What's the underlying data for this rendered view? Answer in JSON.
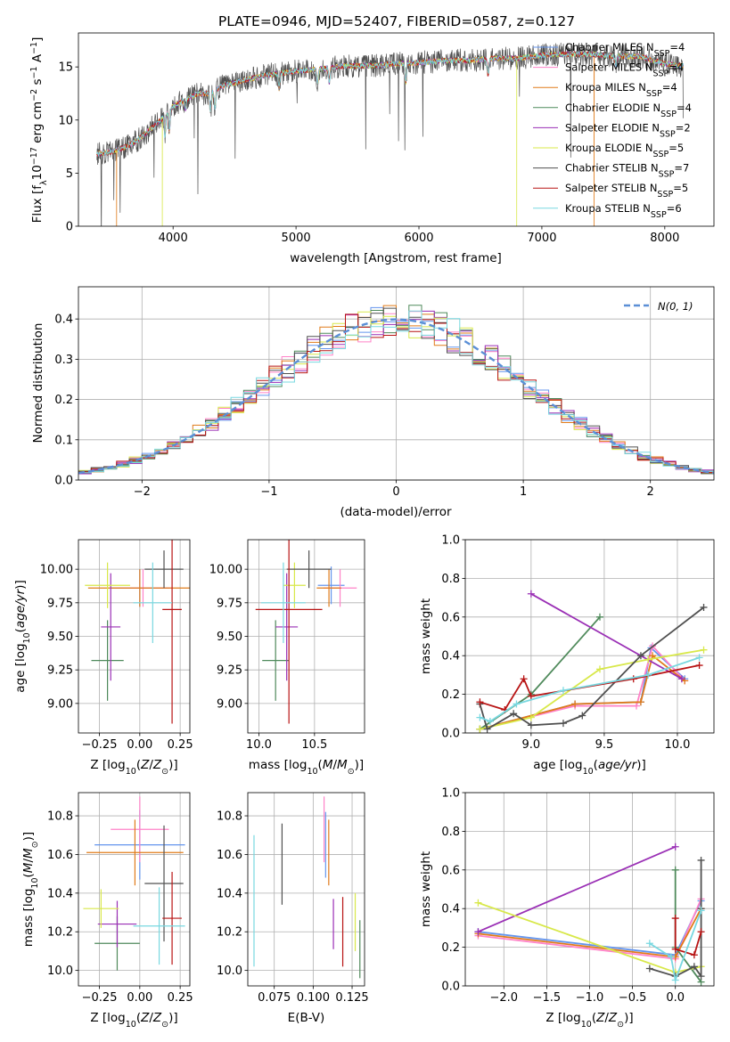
{
  "figure": {
    "title": "PLATE=0946, MJD=52407, FIBERID=0587, z=0.127"
  },
  "models": [
    {
      "name": "Chabrier MILES",
      "nssp": "4",
      "color": "#6495ed"
    },
    {
      "name": "Salpeter MILES",
      "nssp": "4",
      "color": "#ff82c8"
    },
    {
      "name": "Kroupa MILES",
      "nssp": "4",
      "color": "#e07b1a"
    },
    {
      "name": "Chabrier ELODIE",
      "nssp": "4",
      "color": "#4f8a5b"
    },
    {
      "name": "Salpeter ELODIE",
      "nssp": "2",
      "color": "#9a2fb5"
    },
    {
      "name": "Kroupa ELODIE",
      "nssp": "5",
      "color": "#d8e84a"
    },
    {
      "name": "Chabrier STELIB",
      "nssp": "7",
      "color": "#505050"
    },
    {
      "name": "Salpeter STELIB",
      "nssp": "5",
      "color": "#b81414"
    },
    {
      "name": "Kroupa STELIB",
      "nssp": "6",
      "color": "#78d8e0"
    }
  ],
  "legend_labels": {
    "nssp_prefix": "N",
    "nssp_sub": "SSP",
    "nssp_eq": "=",
    "normal": "N(0, 1)"
  },
  "chart_data": [
    {
      "id": "spectrum",
      "type": "line",
      "title": "PLATE=0946, MJD=52407, FIBERID=0587, z=0.127",
      "xlabel": "wavelength [Angstrom, rest frame]",
      "ylabel": "Flux [f_λ 10^-17 erg cm^-2 s^-1 A^-1]",
      "xlim": [
        3230,
        8400
      ],
      "ylim": [
        0,
        18.2
      ],
      "xticks": [
        4000,
        5000,
        6000,
        7000,
        8000
      ],
      "yticks": [
        0,
        5,
        10,
        15
      ],
      "grid": false,
      "legend": "right",
      "continuum": {
        "x": [
          3380,
          3500,
          3600,
          3700,
          3800,
          3900,
          4000,
          4100,
          4200,
          4300,
          4400,
          4500,
          4600,
          4800,
          5000,
          5200,
          5400,
          5600,
          5800,
          6000,
          6200,
          6400,
          6600,
          6800,
          7000,
          7200,
          7400,
          7600,
          7800,
          8000,
          8150
        ],
        "y": [
          6.8,
          7.0,
          7.4,
          8.0,
          9.0,
          10.0,
          11.3,
          11.9,
          12.5,
          12.5,
          13.2,
          13.5,
          13.8,
          14.3,
          14.6,
          14.8,
          15.1,
          15.1,
          15.3,
          15.4,
          15.6,
          15.6,
          15.8,
          15.8,
          16.1,
          16.2,
          16.2,
          16.0,
          16.0,
          15.3,
          15.1
        ]
      },
      "absorption": [
        {
          "x": 3934,
          "y": 8.5
        },
        {
          "x": 3969,
          "y": 8.9
        },
        {
          "x": 4102,
          "y": 11.0
        },
        {
          "x": 4305,
          "y": 10.8
        },
        {
          "x": 4341,
          "y": 11.2
        },
        {
          "x": 4861,
          "y": 12.9
        },
        {
          "x": 5175,
          "y": 13.4
        },
        {
          "x": 5270,
          "y": 13.6
        },
        {
          "x": 5892,
          "y": 13.5
        },
        {
          "x": 6563,
          "y": 14.2
        },
        {
          "x": 7600,
          "y": 15.1
        }
      ],
      "noisy_series": "Chabrier STELIB",
      "edges": [
        {
          "series": "Kroupa MILES",
          "x": [
            3540,
            7425
          ]
        },
        {
          "series": "Kroupa ELODIE",
          "x": [
            3912,
            6795
          ]
        }
      ]
    },
    {
      "id": "residuals",
      "type": "line",
      "xlabel": "(data-model)/error",
      "ylabel": "Normed distribution",
      "xlim": [
        -2.5,
        2.5
      ],
      "ylim": [
        0,
        0.48
      ],
      "xticks": [
        -2,
        -1,
        0,
        1,
        2
      ],
      "yticks": [
        0.0,
        0.1,
        0.2,
        0.3,
        0.4
      ],
      "grid": true,
      "legend": "top-right",
      "bin_width": 0.1,
      "reference_curve": "N(0, 1)"
    },
    {
      "id": "age-vs-Z",
      "type": "scatter",
      "xlabel": "Z [log10(Z/Z⊙)]",
      "ylabel": "age [log10(age/yr)]",
      "xlim": [
        -0.38,
        0.31
      ],
      "ylim": [
        8.78,
        10.22
      ],
      "xticks": [
        -0.25,
        0.0,
        0.25
      ],
      "yticks": [
        9.0,
        9.25,
        9.5,
        9.75,
        10.0
      ],
      "grid": true,
      "points": [
        {
          "series": "Chabrier MILES",
          "x": 0.0,
          "xerr": 0.18,
          "y": 9.86,
          "yerr": 0.14
        },
        {
          "series": "Salpeter MILES",
          "x": 0.02,
          "xerr": 0.18,
          "y": 9.86,
          "yerr": 0.14
        },
        {
          "series": "Kroupa MILES",
          "x": 0.0,
          "xerr": 0.32,
          "y": 9.86,
          "yerr": 0.14
        },
        {
          "series": "Chabrier ELODIE",
          "x": -0.2,
          "xerr": 0.1,
          "y": 9.32,
          "yerr": 0.3
        },
        {
          "series": "Salpeter ELODIE",
          "x": -0.18,
          "xerr": 0.06,
          "y": 9.57,
          "yerr": 0.4
        },
        {
          "series": "Kroupa ELODIE",
          "x": -0.2,
          "xerr": 0.14,
          "y": 9.88,
          "yerr": 0.17
        },
        {
          "series": "Chabrier STELIB",
          "x": 0.15,
          "xerr": 0.12,
          "y": 10.0,
          "yerr": 0.14
        },
        {
          "series": "Salpeter STELIB",
          "x": 0.2,
          "xerr": 0.06,
          "y": 9.7,
          "yerr": 0.85
        },
        {
          "series": "Kroupa STELIB",
          "x": 0.08,
          "xerr": 0.12,
          "y": 9.75,
          "yerr": 0.3
        }
      ]
    },
    {
      "id": "age-vs-mass",
      "type": "scatter",
      "xlabel": "mass [log10(M/M⊙)]",
      "ylabel": "",
      "xlim": [
        9.9,
        10.95
      ],
      "ylim": [
        8.78,
        10.22
      ],
      "xticks": [
        10.0,
        10.5
      ],
      "yticks": [
        9.0,
        9.25,
        9.5,
        9.75,
        10.0
      ],
      "grid": true,
      "points": [
        {
          "series": "Chabrier MILES",
          "x": 10.65,
          "xerr": 0.12,
          "y": 9.88,
          "yerr": 0.14
        },
        {
          "series": "Salpeter MILES",
          "x": 10.73,
          "xerr": 0.15,
          "y": 9.86,
          "yerr": 0.14
        },
        {
          "series": "Kroupa MILES",
          "x": 10.63,
          "xerr": 0.11,
          "y": 9.86,
          "yerr": 0.14
        },
        {
          "series": "Chabrier ELODIE",
          "x": 10.15,
          "xerr": 0.12,
          "y": 9.32,
          "yerr": 0.3
        },
        {
          "series": "Salpeter ELODIE",
          "x": 10.25,
          "xerr": 0.1,
          "y": 9.57,
          "yerr": 0.4
        },
        {
          "series": "Kroupa ELODIE",
          "x": 10.32,
          "xerr": 0.1,
          "y": 9.88,
          "yerr": 0.17
        },
        {
          "series": "Chabrier STELIB",
          "x": 10.45,
          "xerr": 0.2,
          "y": 10.0,
          "yerr": 0.14
        },
        {
          "series": "Salpeter STELIB",
          "x": 10.27,
          "xerr": 0.3,
          "y": 9.7,
          "yerr": 0.85
        },
        {
          "series": "Kroupa STELIB",
          "x": 10.22,
          "xerr": 0.2,
          "y": 9.75,
          "yerr": 0.3
        }
      ]
    },
    {
      "id": "weight-vs-age",
      "type": "line",
      "xlabel": "age [log10(age/yr)]",
      "ylabel": "mass weight",
      "xlim": [
        8.55,
        10.25
      ],
      "ylim": [
        0,
        1.0
      ],
      "xticks": [
        9.0,
        9.5,
        10.0
      ],
      "yticks": [
        0.0,
        0.2,
        0.4,
        0.6,
        0.8,
        1.0
      ],
      "grid": true,
      "series": [
        {
          "name": "Chabrier MILES",
          "x": [
            8.65,
            9.3,
            9.75,
            9.82,
            10.05
          ],
          "y": [
            0.02,
            0.15,
            0.16,
            0.44,
            0.28
          ]
        },
        {
          "name": "Salpeter MILES",
          "x": [
            8.65,
            9.3,
            9.72,
            9.83,
            10.05
          ],
          "y": [
            0.02,
            0.14,
            0.14,
            0.45,
            0.27
          ]
        },
        {
          "name": "Kroupa MILES",
          "x": [
            8.65,
            9.3,
            9.75,
            9.83,
            10.05
          ],
          "y": [
            0.02,
            0.15,
            0.16,
            0.4,
            0.27
          ]
        },
        {
          "name": "Chabrier ELODIE",
          "x": [
            8.65,
            9.0,
            9.47
          ],
          "y": [
            0.02,
            0.2,
            0.6
          ]
        },
        {
          "name": "Salpeter ELODIE",
          "x": [
            9.0,
            10.03
          ],
          "y": [
            0.72,
            0.28
          ]
        },
        {
          "name": "Kroupa ELODIE",
          "x": [
            8.65,
            9.0,
            9.47,
            9.8,
            10.18
          ],
          "y": [
            0.02,
            0.08,
            0.33,
            0.38,
            0.43
          ]
        },
        {
          "name": "Chabrier STELIB",
          "x": [
            8.65,
            8.7,
            8.88,
            9.0,
            9.22,
            9.35,
            9.75,
            10.18
          ],
          "y": [
            0.15,
            0.02,
            0.1,
            0.04,
            0.05,
            0.09,
            0.4,
            0.65
          ]
        },
        {
          "name": "Salpeter STELIB",
          "x": [
            8.65,
            8.82,
            8.95,
            9.0,
            9.7,
            10.15
          ],
          "y": [
            0.16,
            0.12,
            0.28,
            0.19,
            0.28,
            0.35
          ]
        },
        {
          "name": "Kroupa STELIB",
          "x": [
            8.65,
            8.72,
            8.9,
            9.22,
            9.8,
            10.15
          ],
          "y": [
            0.08,
            0.06,
            0.15,
            0.22,
            0.3,
            0.39
          ]
        }
      ]
    },
    {
      "id": "mass-vs-Z",
      "type": "scatter",
      "xlabel": "Z [log10(Z/Z⊙)]",
      "ylabel": "mass [log10(M/M⊙)]",
      "xlim": [
        -0.38,
        0.31
      ],
      "ylim": [
        9.92,
        10.92
      ],
      "xticks": [
        -0.25,
        0.0,
        0.25
      ],
      "yticks": [
        10.0,
        10.2,
        10.4,
        10.6,
        10.8
      ],
      "grid": true,
      "points": [
        {
          "series": "Chabrier MILES",
          "x": 0.0,
          "xerr": 0.28,
          "y": 10.65,
          "yerr": 0.18
        },
        {
          "series": "Salpeter MILES",
          "x": 0.0,
          "xerr": 0.18,
          "y": 10.73,
          "yerr": 0.17
        },
        {
          "series": "Kroupa MILES",
          "x": -0.03,
          "xerr": 0.3,
          "y": 10.61,
          "yerr": 0.17
        },
        {
          "series": "Chabrier ELODIE",
          "x": -0.14,
          "xerr": 0.14,
          "y": 10.14,
          "yerr": 0.14
        },
        {
          "series": "Salpeter ELODIE",
          "x": -0.14,
          "xerr": 0.12,
          "y": 10.24,
          "yerr": 0.12
        },
        {
          "series": "Kroupa ELODIE",
          "x": -0.24,
          "xerr": 0.11,
          "y": 10.32,
          "yerr": 0.1
        },
        {
          "series": "Chabrier STELIB",
          "x": 0.15,
          "xerr": 0.12,
          "y": 10.45,
          "yerr": 0.3
        },
        {
          "series": "Salpeter STELIB",
          "x": 0.2,
          "xerr": 0.06,
          "y": 10.27,
          "yerr": 0.24
        },
        {
          "series": "Kroupa STELIB",
          "x": 0.12,
          "xerr": 0.16,
          "y": 10.23,
          "yerr": 0.2
        }
      ]
    },
    {
      "id": "mass-vs-EBV",
      "type": "scatter",
      "xlabel": "E(B-V)",
      "ylabel": "",
      "xlim": [
        0.058,
        0.133
      ],
      "ylim": [
        9.92,
        10.92
      ],
      "xticks": [
        0.075,
        0.1,
        0.125
      ],
      "yticks": [
        10.0,
        10.2,
        10.4,
        10.6,
        10.8
      ],
      "grid": true,
      "points": [
        {
          "series": "Chabrier MILES",
          "x": 0.108,
          "yerr": 0.17,
          "y": 10.65
        },
        {
          "series": "Salpeter MILES",
          "x": 0.107,
          "yerr": 0.17,
          "y": 10.73
        },
        {
          "series": "Kroupa MILES",
          "x": 0.11,
          "yerr": 0.17,
          "y": 10.61
        },
        {
          "series": "Chabrier ELODIE",
          "x": 0.13,
          "yerr": 0.15,
          "y": 10.11
        },
        {
          "series": "Salpeter ELODIE",
          "x": 0.113,
          "yerr": 0.13,
          "y": 10.24
        },
        {
          "series": "Kroupa ELODIE",
          "x": 0.127,
          "yerr": 0.15,
          "y": 10.25
        },
        {
          "series": "Chabrier STELIB",
          "x": 0.08,
          "yerr": 0.21,
          "y": 10.55
        },
        {
          "series": "Salpeter STELIB",
          "x": 0.119,
          "yerr": 0.18,
          "y": 10.2
        },
        {
          "series": "Kroupa STELIB",
          "x": 0.062,
          "yerr": 0.34,
          "y": 10.36
        }
      ]
    },
    {
      "id": "weight-vs-Z",
      "type": "line",
      "xlabel": "Z [log10(Z/Z⊙)]",
      "ylabel": "mass weight",
      "xlim": [
        -2.45,
        0.45
      ],
      "ylim": [
        0,
        1.0
      ],
      "xticks": [
        -2.0,
        -1.5,
        -1.0,
        -0.5,
        0.0
      ],
      "yticks": [
        0.0,
        0.2,
        0.4,
        0.6,
        0.8,
        1.0
      ],
      "grid": true,
      "series": [
        {
          "name": "Chabrier MILES",
          "x": [
            -2.3,
            0.0,
            0.3
          ],
          "y": [
            0.28,
            0.16,
            0.44
          ]
        },
        {
          "name": "Salpeter MILES",
          "x": [
            -2.3,
            0.0,
            0.3
          ],
          "y": [
            0.26,
            0.14,
            0.45
          ]
        },
        {
          "name": "Kroupa MILES",
          "x": [
            -2.3,
            0.0,
            0.3
          ],
          "y": [
            0.27,
            0.15,
            0.4
          ]
        },
        {
          "name": "Chabrier ELODIE",
          "x": [
            0.0,
            0.0,
            0.3
          ],
          "y": [
            0.6,
            0.2,
            0.02
          ]
        },
        {
          "name": "Salpeter ELODIE",
          "x": [
            -2.3,
            0.0
          ],
          "y": [
            0.28,
            0.72
          ]
        },
        {
          "name": "Kroupa ELODIE",
          "x": [
            -2.3,
            0.0,
            0.3
          ],
          "y": [
            0.43,
            0.07,
            0.1
          ]
        },
        {
          "name": "Chabrier STELIB",
          "x": [
            -0.3,
            0.0,
            0.22,
            0.3,
            0.3,
            0.3
          ],
          "y": [
            0.09,
            0.05,
            0.1,
            0.05,
            0.4,
            0.65
          ]
        },
        {
          "name": "Salpeter STELIB",
          "x": [
            0.0,
            0.0,
            0.22,
            0.3
          ],
          "y": [
            0.35,
            0.19,
            0.16,
            0.28
          ]
        },
        {
          "name": "Kroupa STELIB",
          "x": [
            -0.3,
            -0.05,
            0.0,
            0.3
          ],
          "y": [
            0.22,
            0.15,
            0.03,
            0.39
          ]
        }
      ]
    }
  ]
}
